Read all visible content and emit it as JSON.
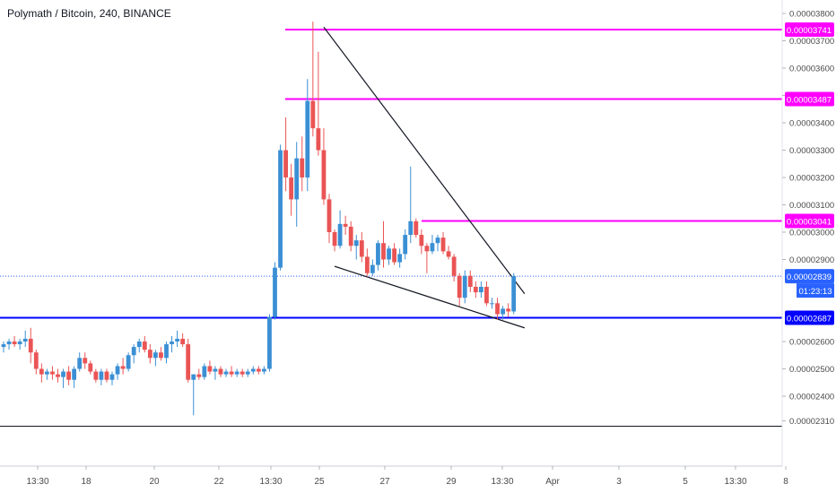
{
  "header": {
    "title": "Polymath / Bitcoin, 240, BINANCE"
  },
  "colors": {
    "up": "#3b8fd4",
    "down": "#ea5455",
    "magenta": "#ff00ff",
    "blue_line": "#0000ff",
    "axis_text": "#4a4a4a",
    "current_price": "#2962ff"
  },
  "chart_data": {
    "type": "candlestick",
    "title": "Polymath / Bitcoin, 240, BINANCE",
    "ylim": [
      2.27e-05,
      3.83e-05
    ],
    "y_ticks": [
      "0.00003800",
      "0.00003700",
      "0.00003600",
      "0.00003500",
      "0.00003400",
      "0.00003300",
      "0.00003200",
      "0.00003100",
      "0.00003000",
      "0.00002900",
      "0.00002600",
      "0.00002500",
      "0.00002400",
      "0.00002310"
    ],
    "x_ticks": [
      "13:30",
      "18",
      "20",
      "22",
      "13:30",
      "25",
      "27",
      "29",
      "13:30",
      "Apr",
      "3",
      "5",
      "13:30",
      "8"
    ],
    "horizontal_levels": [
      {
        "value": 3.741e-05,
        "label": "0.00003741",
        "color": "magenta"
      },
      {
        "value": 3.487e-05,
        "label": "0.00003487",
        "color": "magenta"
      },
      {
        "value": 3.041e-05,
        "label": "0.00003041",
        "color": "magenta"
      },
      {
        "value": 2.687e-05,
        "label": "0.00002687",
        "color": "blue"
      }
    ],
    "current_price": {
      "value": 2.839e-05,
      "label": "0.00002839",
      "countdown": "01:23:13"
    },
    "bottom_level": 2.29e-05,
    "trendlines": [
      {
        "from": {
          "bar": 59,
          "price": 3.75e-05
        },
        "to": {
          "bar": 96,
          "price": 2.775e-05
        }
      },
      {
        "from": {
          "bar": 61,
          "price": 2.875e-05
        },
        "to": {
          "bar": 96,
          "price": 2.65e-05
        }
      }
    ],
    "candles": [
      {
        "o": 2.58e-05,
        "h": 2.6e-05,
        "l": 2.56e-05,
        "c": 2.59e-05
      },
      {
        "o": 2.59e-05,
        "h": 2.61e-05,
        "l": 2.57e-05,
        "c": 2.6e-05
      },
      {
        "o": 2.6e-05,
        "h": 2.62e-05,
        "l": 2.58e-05,
        "c": 2.59e-05
      },
      {
        "o": 2.59e-05,
        "h": 2.61e-05,
        "l": 2.57e-05,
        "c": 2.6e-05
      },
      {
        "o": 2.6e-05,
        "h": 2.64e-05,
        "l": 2.58e-05,
        "c": 2.61e-05
      },
      {
        "o": 2.61e-05,
        "h": 2.65e-05,
        "l": 2.52e-05,
        "c": 2.56e-05
      },
      {
        "o": 2.56e-05,
        "h": 2.57e-05,
        "l": 2.48e-05,
        "c": 2.5e-05
      },
      {
        "o": 2.5e-05,
        "h": 2.52e-05,
        "l": 2.45e-05,
        "c": 2.48e-05
      },
      {
        "o": 2.48e-05,
        "h": 2.5e-05,
        "l": 2.46e-05,
        "c": 2.49e-05
      },
      {
        "o": 2.49e-05,
        "h": 2.51e-05,
        "l": 2.46e-05,
        "c": 2.48e-05
      },
      {
        "o": 2.48e-05,
        "h": 2.5e-05,
        "l": 2.45e-05,
        "c": 2.47e-05
      },
      {
        "o": 2.47e-05,
        "h": 2.5e-05,
        "l": 2.43e-05,
        "c": 2.49e-05
      },
      {
        "o": 2.49e-05,
        "h": 2.51e-05,
        "l": 2.44e-05,
        "c": 2.46e-05
      },
      {
        "o": 2.46e-05,
        "h": 2.51e-05,
        "l": 2.43e-05,
        "c": 2.5e-05
      },
      {
        "o": 2.5e-05,
        "h": 2.56e-05,
        "l": 2.49e-05,
        "c": 2.54e-05
      },
      {
        "o": 2.54e-05,
        "h": 2.56e-05,
        "l": 2.5e-05,
        "c": 2.52e-05
      },
      {
        "o": 2.52e-05,
        "h": 2.53e-05,
        "l": 2.48e-05,
        "c": 2.49e-05
      },
      {
        "o": 2.49e-05,
        "h": 2.5e-05,
        "l": 2.45e-05,
        "c": 2.46e-05
      },
      {
        "o": 2.46e-05,
        "h": 2.5e-05,
        "l": 2.44e-05,
        "c": 2.49e-05
      },
      {
        "o": 2.49e-05,
        "h": 2.5e-05,
        "l": 2.45e-05,
        "c": 2.46e-05
      },
      {
        "o": 2.46e-05,
        "h": 2.49e-05,
        "l": 2.44e-05,
        "c": 2.48e-05
      },
      {
        "o": 2.48e-05,
        "h": 2.52e-05,
        "l": 2.46e-05,
        "c": 2.51e-05
      },
      {
        "o": 2.51e-05,
        "h": 2.54e-05,
        "l": 2.48e-05,
        "c": 2.5e-05
      },
      {
        "o": 2.5e-05,
        "h": 2.56e-05,
        "l": 2.49e-05,
        "c": 2.55e-05
      },
      {
        "o": 2.55e-05,
        "h": 2.59e-05,
        "l": 2.52e-05,
        "c": 2.58e-05
      },
      {
        "o": 2.58e-05,
        "h": 2.61e-05,
        "l": 2.56e-05,
        "c": 2.6e-05
      },
      {
        "o": 2.6e-05,
        "h": 2.62e-05,
        "l": 2.56e-05,
        "c": 2.57e-05
      },
      {
        "o": 2.57e-05,
        "h": 2.59e-05,
        "l": 2.52e-05,
        "c": 2.54e-05
      },
      {
        "o": 2.54e-05,
        "h": 2.57e-05,
        "l": 2.51e-05,
        "c": 2.56e-05
      },
      {
        "o": 2.56e-05,
        "h": 2.58e-05,
        "l": 2.53e-05,
        "c": 2.54e-05
      },
      {
        "o": 2.54e-05,
        "h": 2.6e-05,
        "l": 2.52e-05,
        "c": 2.59e-05
      },
      {
        "o": 2.59e-05,
        "h": 2.62e-05,
        "l": 2.56e-05,
        "c": 2.6e-05
      },
      {
        "o": 2.6e-05,
        "h": 2.64e-05,
        "l": 2.58e-05,
        "c": 2.61e-05
      },
      {
        "o": 2.61e-05,
        "h": 2.63e-05,
        "l": 2.58e-05,
        "c": 2.59e-05
      },
      {
        "o": 2.59e-05,
        "h": 2.61e-05,
        "l": 2.45e-05,
        "c": 2.46e-05
      },
      {
        "o": 2.46e-05,
        "h": 2.48e-05,
        "l": 2.33e-05,
        "c": 2.48e-05
      },
      {
        "o": 2.48e-05,
        "h": 2.5e-05,
        "l": 2.46e-05,
        "c": 2.47e-05
      },
      {
        "o": 2.47e-05,
        "h": 2.52e-05,
        "l": 2.46e-05,
        "c": 2.51e-05
      },
      {
        "o": 2.51e-05,
        "h": 2.53e-05,
        "l": 2.48e-05,
        "c": 2.49e-05
      },
      {
        "o": 2.49e-05,
        "h": 2.51e-05,
        "l": 2.46e-05,
        "c": 2.5e-05
      },
      {
        "o": 2.5e-05,
        "h": 2.51e-05,
        "l": 2.47e-05,
        "c": 2.48e-05
      },
      {
        "o": 2.48e-05,
        "h": 2.5e-05,
        "l": 2.47e-05,
        "c": 2.49e-05
      },
      {
        "o": 2.49e-05,
        "h": 2.51e-05,
        "l": 2.47e-05,
        "c": 2.48e-05
      },
      {
        "o": 2.48e-05,
        "h": 2.5e-05,
        "l": 2.47e-05,
        "c": 2.49e-05
      },
      {
        "o": 2.49e-05,
        "h": 2.5e-05,
        "l": 2.47e-05,
        "c": 2.48e-05
      },
      {
        "o": 2.48e-05,
        "h": 2.5e-05,
        "l": 2.47e-05,
        "c": 2.49e-05
      },
      {
        "o": 2.49e-05,
        "h": 2.51e-05,
        "l": 2.48e-05,
        "c": 2.5e-05
      },
      {
        "o": 2.5e-05,
        "h": 2.51e-05,
        "l": 2.48e-05,
        "c": 2.49e-05
      },
      {
        "o": 2.49e-05,
        "h": 2.51e-05,
        "l": 2.48e-05,
        "c": 2.5e-05
      },
      {
        "o": 2.5e-05,
        "h": 2.7e-05,
        "l": 2.49e-05,
        "c": 2.69e-05
      },
      {
        "o": 2.69e-05,
        "h": 2.89e-05,
        "l": 2.68e-05,
        "c": 2.87e-05
      },
      {
        "o": 2.87e-05,
        "h": 3.32e-05,
        "l": 2.86e-05,
        "c": 3.3e-05
      },
      {
        "o": 3.3e-05,
        "h": 3.42e-05,
        "l": 3.15e-05,
        "c": 3.2e-05
      },
      {
        "o": 3.2e-05,
        "h": 3.25e-05,
        "l": 3.06e-05,
        "c": 3.12e-05
      },
      {
        "o": 3.12e-05,
        "h": 3.33e-05,
        "l": 3.02e-05,
        "c": 3.27e-05
      },
      {
        "o": 3.27e-05,
        "h": 3.35e-05,
        "l": 3.15e-05,
        "c": 3.2e-05
      },
      {
        "o": 3.2e-05,
        "h": 3.56e-05,
        "l": 3.15e-05,
        "c": 3.48e-05
      },
      {
        "o": 3.48e-05,
        "h": 3.77e-05,
        "l": 3.35e-05,
        "c": 3.38e-05
      },
      {
        "o": 3.38e-05,
        "h": 3.66e-05,
        "l": 3.28e-05,
        "c": 3.3e-05
      },
      {
        "o": 3.3e-05,
        "h": 3.38e-05,
        "l": 3.1e-05,
        "c": 3.12e-05
      },
      {
        "o": 3.12e-05,
        "h": 3.14e-05,
        "l": 2.96e-05,
        "c": 3e-05
      },
      {
        "o": 3e-05,
        "h": 3.01e-05,
        "l": 2.93e-05,
        "c": 2.95e-05
      },
      {
        "o": 2.95e-05,
        "h": 3.08e-05,
        "l": 2.94e-05,
        "c": 3.03e-05
      },
      {
        "o": 3.03e-05,
        "h": 3.06e-05,
        "l": 2.99e-05,
        "c": 3.02e-05
      },
      {
        "o": 3.02e-05,
        "h": 3.04e-05,
        "l": 2.93e-05,
        "c": 2.95e-05
      },
      {
        "o": 2.95e-05,
        "h": 2.99e-05,
        "l": 2.9e-05,
        "c": 2.97e-05
      },
      {
        "o": 2.97e-05,
        "h": 3e-05,
        "l": 2.89e-05,
        "c": 2.91e-05
      },
      {
        "o": 2.91e-05,
        "h": 2.94e-05,
        "l": 2.84e-05,
        "c": 2.85e-05
      },
      {
        "o": 2.85e-05,
        "h": 2.9e-05,
        "l": 2.84e-05,
        "c": 2.88e-05
      },
      {
        "o": 2.88e-05,
        "h": 2.97e-05,
        "l": 2.86e-05,
        "c": 2.96e-05
      },
      {
        "o": 2.96e-05,
        "h": 3.04e-05,
        "l": 2.87e-05,
        "c": 2.9e-05
      },
      {
        "o": 2.9e-05,
        "h": 2.95e-05,
        "l": 2.88e-05,
        "c": 2.94e-05
      },
      {
        "o": 2.94e-05,
        "h": 2.96e-05,
        "l": 2.88e-05,
        "c": 2.89e-05
      },
      {
        "o": 2.89e-05,
        "h": 2.94e-05,
        "l": 2.87e-05,
        "c": 2.92e-05
      },
      {
        "o": 2.92e-05,
        "h": 3.01e-05,
        "l": 2.9e-05,
        "c": 2.99e-05
      },
      {
        "o": 2.99e-05,
        "h": 3.24e-05,
        "l": 2.96e-05,
        "c": 3.04e-05
      },
      {
        "o": 3.04e-05,
        "h": 3.05e-05,
        "l": 2.98e-05,
        "c": 2.99e-05
      },
      {
        "o": 2.99e-05,
        "h": 3.01e-05,
        "l": 2.92e-05,
        "c": 2.95e-05
      },
      {
        "o": 2.95e-05,
        "h": 2.96e-05,
        "l": 2.85e-05,
        "c": 2.93e-05
      },
      {
        "o": 2.93e-05,
        "h": 2.99e-05,
        "l": 2.92e-05,
        "c": 2.96e-05
      },
      {
        "o": 2.96e-05,
        "h": 2.99e-05,
        "l": 2.93e-05,
        "c": 2.98e-05
      },
      {
        "o": 2.98e-05,
        "h": 3e-05,
        "l": 2.92e-05,
        "c": 2.93e-05
      },
      {
        "o": 2.93e-05,
        "h": 2.95e-05,
        "l": 2.9e-05,
        "c": 2.91e-05
      },
      {
        "o": 2.91e-05,
        "h": 2.92e-05,
        "l": 2.82e-05,
        "c": 2.84e-05
      },
      {
        "o": 2.84e-05,
        "h": 2.85e-05,
        "l": 2.73e-05,
        "c": 2.76e-05
      },
      {
        "o": 2.76e-05,
        "h": 2.86e-05,
        "l": 2.74e-05,
        "c": 2.84e-05
      },
      {
        "o": 2.84e-05,
        "h": 2.86e-05,
        "l": 2.78e-05,
        "c": 2.8e-05
      },
      {
        "o": 2.8e-05,
        "h": 2.82e-05,
        "l": 2.76e-05,
        "c": 2.78e-05
      },
      {
        "o": 2.78e-05,
        "h": 2.82e-05,
        "l": 2.76e-05,
        "c": 2.8e-05
      },
      {
        "o": 2.8e-05,
        "h": 2.82e-05,
        "l": 2.73e-05,
        "c": 2.74e-05
      },
      {
        "o": 2.74e-05,
        "h": 2.76e-05,
        "l": 2.72e-05,
        "c": 2.74e-05
      },
      {
        "o": 2.74e-05,
        "h": 2.76e-05,
        "l": 2.68e-05,
        "c": 2.7e-05
      },
      {
        "o": 2.7e-05,
        "h": 2.73e-05,
        "l": 2.68e-05,
        "c": 2.72e-05
      },
      {
        "o": 2.72e-05,
        "h": 2.74e-05,
        "l": 2.69e-05,
        "c": 2.71e-05
      },
      {
        "o": 2.71e-05,
        "h": 2.85e-05,
        "l": 2.7e-05,
        "c": 2.839e-05
      }
    ]
  }
}
